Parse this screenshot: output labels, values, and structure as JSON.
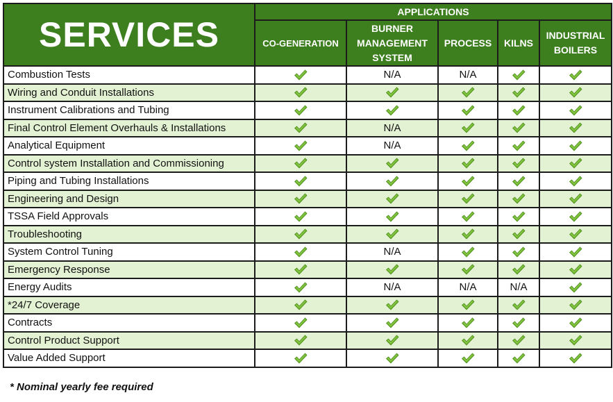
{
  "header": {
    "services": "SERVICES",
    "applications": "APPLICATIONS",
    "columns": [
      {
        "line1": "CO-GENERATION",
        "line2": "",
        "line3": ""
      },
      {
        "line1": "BURNER",
        "line2": "MANAGEMENT",
        "line3": "SYSTEM"
      },
      {
        "line1": "PROCESS",
        "line2": "",
        "line3": ""
      },
      {
        "line1": "KILNS",
        "line2": "",
        "line3": ""
      },
      {
        "line1": "INDUSTRIAL",
        "line2": "BOILERS",
        "line3": ""
      }
    ]
  },
  "check_icon_name": "checkmark-icon",
  "check_color": "#6fb52e",
  "rows": [
    {
      "service": "Combustion Tests",
      "values": [
        "check",
        "N/A",
        "N/A",
        "check",
        "check"
      ]
    },
    {
      "service": "Wiring and Conduit Installations",
      "values": [
        "check",
        "check",
        "check",
        "check",
        "check"
      ]
    },
    {
      "service": "Instrument Calibrations and Tubing",
      "values": [
        "check",
        "check",
        "check",
        "check",
        "check"
      ]
    },
    {
      "service": "Final Control Element Overhauls & Installations",
      "values": [
        "check",
        "N/A",
        "check",
        "check",
        "check"
      ]
    },
    {
      "service": "Analytical Equipment",
      "values": [
        "check",
        "N/A",
        "check",
        "check",
        "check"
      ]
    },
    {
      "service": "Control system Installation and Commissioning",
      "values": [
        "check",
        "check",
        "check",
        "check",
        "check"
      ]
    },
    {
      "service": "Piping and Tubing Installations",
      "values": [
        "check",
        "check",
        "check",
        "check",
        "check"
      ]
    },
    {
      "service": "Engineering and Design",
      "values": [
        "check",
        "check",
        "check",
        "check",
        "check"
      ]
    },
    {
      "service": "TSSA Field Approvals",
      "values": [
        "check",
        "check",
        "check",
        "check",
        "check"
      ]
    },
    {
      "service": "Troubleshooting",
      "values": [
        "check",
        "check",
        "check",
        "check",
        "check"
      ]
    },
    {
      "service": "System Control Tuning",
      "values": [
        "check",
        "N/A",
        "check",
        "check",
        "check"
      ]
    },
    {
      "service": "Emergency Response",
      "values": [
        "check",
        "check",
        "check",
        "check",
        "check"
      ]
    },
    {
      "service": "Energy Audits",
      "values": [
        "check",
        "N/A",
        "N/A",
        "N/A",
        "check"
      ]
    },
    {
      "service": "*24/7 Coverage",
      "values": [
        "check",
        "check",
        "check",
        "check",
        "check"
      ]
    },
    {
      "service": "Contracts",
      "values": [
        "check",
        "check",
        "check",
        "check",
        "check"
      ]
    },
    {
      "service": "Control Product Support",
      "values": [
        "check",
        "check",
        "check",
        "check",
        "check"
      ]
    },
    {
      "service": "Value Added Support",
      "values": [
        "check",
        "check",
        "check",
        "check",
        "check"
      ]
    }
  ],
  "footnote": "* Nominal yearly fee required"
}
